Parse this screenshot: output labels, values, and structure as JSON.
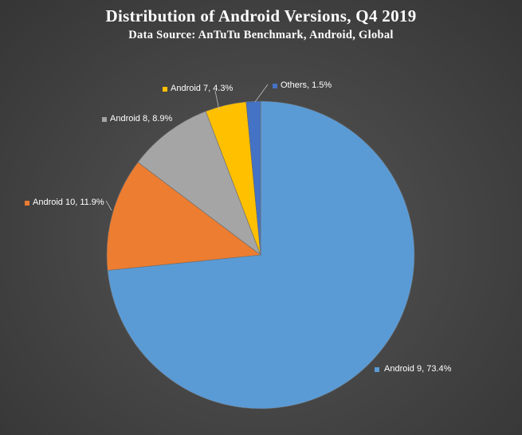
{
  "chart_data": {
    "type": "pie",
    "title": "Distribution of Android Versions, Q4 2019",
    "subtitle": "Data Source: AnTuTu Benchmark, Android, Global",
    "slices": [
      {
        "name": "Android 9",
        "value": 73.4,
        "label": "Android 9, 73.4%",
        "color": "#5b9bd5"
      },
      {
        "name": "Android 10",
        "value": 11.9,
        "label": "Android 10, 11.9%",
        "color": "#ed7d31"
      },
      {
        "name": "Android 8",
        "value": 8.9,
        "label": "Android 8, 8.9%",
        "color": "#a5a5a5"
      },
      {
        "name": "Android 7",
        "value": 4.3,
        "label": "Android 7, 4.3%",
        "color": "#ffc000"
      },
      {
        "name": "Others",
        "value": 1.5,
        "label": "Others, 1.5%",
        "color": "#4472c4"
      }
    ]
  }
}
